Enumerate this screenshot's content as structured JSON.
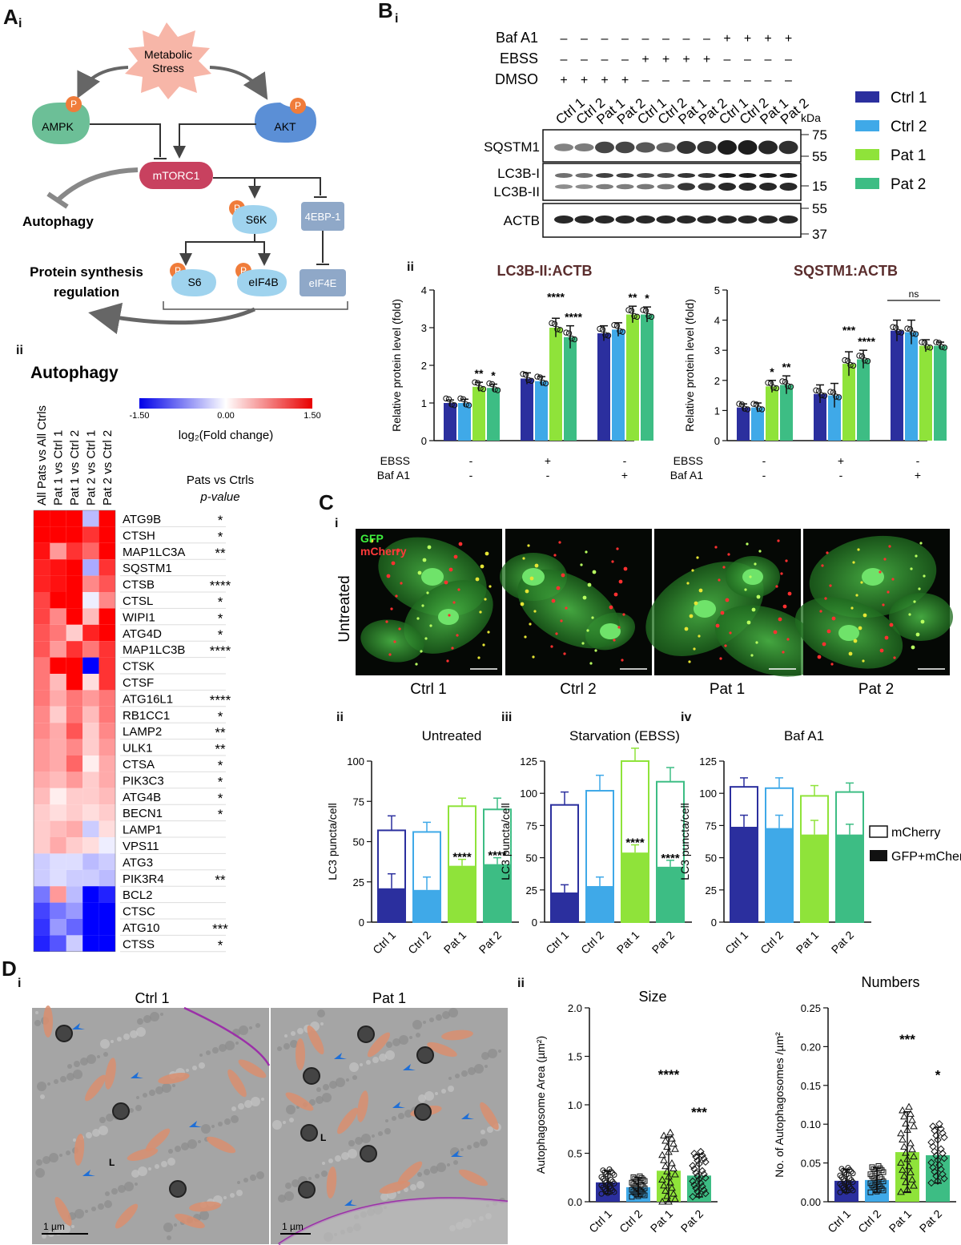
{
  "labels": {
    "A": "A",
    "Ai": "i",
    "Aii": "ii",
    "B": "B",
    "Bi": "i",
    "Bii": "ii",
    "C": "C",
    "Ci": "i",
    "Cii": "ii",
    "Ciii": "iii",
    "Civ": "iv",
    "D": "D",
    "Di": "i",
    "Dii": "ii"
  },
  "pathway": {
    "stress": "Metabolic\nStress",
    "ampk": "AMPK",
    "akt": "AKT",
    "mtorc1": "mTORC1",
    "s6k": "S6K",
    "ebp": "4EBP-1",
    "s6": "S6",
    "eif4b": "eIF4B",
    "eif4e": "eIF4E",
    "autophagy": "Autophagy",
    "protein": "Protein synthesis\nregulation",
    "p": "P",
    "colors": {
      "stress": "#f7b6a8",
      "ampk": "#6cbf97",
      "akt": "#5b8fd6",
      "mtorc1": "#c8415f",
      "light": "#9fd3ee",
      "grey": "#8fa8c8",
      "p": "#f07c3a"
    }
  },
  "heatmap": {
    "title": "Autophagy",
    "colorbar": {
      "min": "-1.50",
      "mid": "0.00",
      "max": "1.50",
      "label": "log₂(Fold change)"
    },
    "columns": [
      "All Pats vs All Ctrls",
      "Pat 1 vs Ctrl 1",
      "Pat 1 vs Ctrl 2",
      "Pat 2 vs Ctrl 1",
      "Pat 2 vs Ctrl 2"
    ],
    "pval_header": [
      "Pats vs Ctrls",
      "p-value"
    ],
    "rows": [
      {
        "gene": "ATG9B",
        "p": "*",
        "v": [
          1.5,
          1.5,
          1.5,
          -0.4,
          1.5
        ]
      },
      {
        "gene": "CTSH",
        "p": "*",
        "v": [
          1.5,
          1.5,
          1.5,
          1.2,
          1.5
        ]
      },
      {
        "gene": "MAP1LC3A",
        "p": "**",
        "v": [
          1.4,
          0.6,
          1.2,
          0.9,
          1.5
        ]
      },
      {
        "gene": "SQSTM1",
        "p": "",
        "v": [
          1.3,
          1.4,
          1.5,
          -0.5,
          1.2
        ]
      },
      {
        "gene": "CTSB",
        "p": "****",
        "v": [
          1.3,
          1.4,
          1.5,
          0.7,
          1.0
        ]
      },
      {
        "gene": "CTSL",
        "p": "*",
        "v": [
          1.1,
          1.5,
          1.5,
          -0.1,
          0.7
        ]
      },
      {
        "gene": "WIPI1",
        "p": "*",
        "v": [
          1.1,
          0.7,
          1.5,
          0.4,
          1.5
        ]
      },
      {
        "gene": "ATG4D",
        "p": "*",
        "v": [
          1.0,
          0.8,
          0.3,
          1.3,
          1.5
        ]
      },
      {
        "gene": "MAP1LC3B",
        "p": "****",
        "v": [
          1.0,
          0.6,
          1.2,
          0.8,
          1.2
        ]
      },
      {
        "gene": "CTSK",
        "p": "",
        "v": [
          0.8,
          1.5,
          1.5,
          -1.5,
          1.2
        ]
      },
      {
        "gene": "CTSF",
        "p": "",
        "v": [
          0.8,
          0.4,
          1.5,
          0.2,
          1.2
        ]
      },
      {
        "gene": "ATG16L1",
        "p": "****",
        "v": [
          0.8,
          0.5,
          0.8,
          0.6,
          0.8
        ]
      },
      {
        "gene": "RB1CC1",
        "p": "*",
        "v": [
          0.7,
          0.3,
          0.8,
          0.4,
          0.8
        ]
      },
      {
        "gene": "LAMP2",
        "p": "**",
        "v": [
          0.7,
          0.5,
          1.0,
          0.3,
          0.7
        ]
      },
      {
        "gene": "ULK1",
        "p": "**",
        "v": [
          0.6,
          0.5,
          0.7,
          0.3,
          0.6
        ]
      },
      {
        "gene": "CTSA",
        "p": "*",
        "v": [
          0.6,
          0.5,
          0.9,
          0.1,
          0.5
        ]
      },
      {
        "gene": "PIK3C3",
        "p": "*",
        "v": [
          0.5,
          0.4,
          0.6,
          0.3,
          0.5
        ]
      },
      {
        "gene": "ATG4B",
        "p": "*",
        "v": [
          0.4,
          0.1,
          0.3,
          0.3,
          0.4
        ]
      },
      {
        "gene": "BECN1",
        "p": "*",
        "v": [
          0.3,
          0.2,
          0.3,
          0.2,
          0.3
        ]
      },
      {
        "gene": "LAMP1",
        "p": "",
        "v": [
          0.3,
          0.4,
          0.5,
          -0.3,
          0.2
        ]
      },
      {
        "gene": "VPS11",
        "p": "",
        "v": [
          0.3,
          0.5,
          0.3,
          0.2,
          -0.1
        ]
      },
      {
        "gene": "ATG3",
        "p": "",
        "v": [
          -0.3,
          -0.2,
          -0.2,
          -0.4,
          -0.3
        ]
      },
      {
        "gene": "PIK3R4",
        "p": "**",
        "v": [
          -0.3,
          -0.2,
          -0.3,
          -0.3,
          -0.4
        ]
      },
      {
        "gene": "BCL2",
        "p": "",
        "v": [
          -0.8,
          0.6,
          -0.4,
          -1.5,
          -1.3
        ]
      },
      {
        "gene": "CTSC",
        "p": "",
        "v": [
          -1.1,
          -0.8,
          -0.6,
          -1.5,
          -1.5
        ]
      },
      {
        "gene": "ATG10",
        "p": "***",
        "v": [
          -1.2,
          -0.6,
          -0.9,
          -1.5,
          -1.5
        ]
      },
      {
        "gene": "CTSS",
        "p": "*",
        "v": [
          -1.3,
          -1.0,
          -0.3,
          -1.5,
          -1.5
        ]
      }
    ]
  },
  "blot": {
    "treatments": [
      {
        "name": "Baf A1",
        "signs": [
          "–",
          "–",
          "–",
          "–",
          "–",
          "–",
          "–",
          "–",
          "+",
          "+",
          "+",
          "+"
        ]
      },
      {
        "name": "EBSS",
        "signs": [
          "–",
          "–",
          "–",
          "–",
          "+",
          "+",
          "+",
          "+",
          "–",
          "–",
          "–",
          "–"
        ]
      },
      {
        "name": "DMSO",
        "signs": [
          "+",
          "+",
          "+",
          "+",
          "–",
          "–",
          "–",
          "–",
          "–",
          "–",
          "–",
          "–"
        ]
      }
    ],
    "lanes": [
      "Ctrl 1",
      "Ctrl 2",
      "Pat 1",
      "Pat 2",
      "Ctrl 1",
      "Ctrl 2",
      "Pat 1",
      "Pat 2",
      "Ctrl 1",
      "Ctrl 2",
      "Pat 1",
      "Pat 2"
    ],
    "kda": "kDa",
    "markers": [
      "75",
      "55",
      "15",
      "55",
      "37"
    ],
    "proteins": [
      "SQSTM1",
      "LC3B-I",
      "LC3B-II",
      "ACTB"
    ],
    "legend": [
      {
        "name": "Ctrl 1",
        "color": "#2b2f9e"
      },
      {
        "name": "Ctrl 2",
        "color": "#3fa9e8"
      },
      {
        "name": "Pat 1",
        "color": "#8fe33a"
      },
      {
        "name": "Pat 2",
        "color": "#3dbd84"
      }
    ]
  },
  "chart_data": [
    {
      "type": "bar",
      "title": "LC3B-II:ACTB",
      "ylabel": "Relative protein level (fold)",
      "ylim": [
        0,
        4
      ],
      "yticks": [
        "0",
        "1",
        "2",
        "3",
        "4"
      ],
      "conditions": [
        {
          "ebss": "-",
          "baf": "-"
        },
        {
          "ebss": "+",
          "baf": "-"
        },
        {
          "ebss": "-",
          "baf": "+"
        }
      ],
      "row_labels": [
        "EBSS",
        "Baf A1"
      ],
      "values": [
        [
          1.0,
          1.0,
          1.43,
          1.4
        ],
        [
          1.65,
          1.58,
          3.0,
          2.75
        ],
        [
          2.85,
          2.95,
          3.35,
          3.35
        ]
      ],
      "err": [
        [
          0.08,
          0.1,
          0.12,
          0.1
        ],
        [
          0.15,
          0.12,
          0.25,
          0.3
        ],
        [
          0.2,
          0.18,
          0.22,
          0.2
        ]
      ],
      "sig": [
        [
          "",
          "",
          "**",
          "*"
        ],
        [
          "",
          "",
          "****",
          "****"
        ],
        [
          "",
          "",
          "**",
          "*"
        ]
      ],
      "ns": ""
    },
    {
      "type": "bar",
      "title": "SQSTM1:ACTB",
      "ylabel": "Relative protein level (fold)",
      "ylim": [
        0,
        5
      ],
      "yticks": [
        "0",
        "1",
        "2",
        "3",
        "4",
        "5"
      ],
      "conditions": [
        {
          "ebss": "-",
          "baf": "-"
        },
        {
          "ebss": "+",
          "baf": "-"
        },
        {
          "ebss": "-",
          "baf": "+"
        }
      ],
      "row_labels": [
        "EBSS",
        "Baf A1"
      ],
      "values": [
        [
          1.1,
          1.1,
          1.8,
          1.85
        ],
        [
          1.55,
          1.5,
          2.55,
          2.7
        ],
        [
          3.65,
          3.6,
          3.15,
          3.15
        ]
      ],
      "err": [
        [
          0.12,
          0.15,
          0.2,
          0.3
        ],
        [
          0.3,
          0.4,
          0.4,
          0.3
        ],
        [
          0.35,
          0.4,
          0.2,
          0.12
        ]
      ],
      "sig": [
        [
          "",
          "",
          "*",
          "**"
        ],
        [
          "",
          "",
          "***",
          "****"
        ],
        [
          "",
          "",
          "",
          ""
        ]
      ],
      "ns": "ns"
    },
    {
      "type": "bar",
      "title": "Untreated",
      "ylabel": "LC3 puncta/cell",
      "ylim": [
        0,
        100
      ],
      "yticks": [
        "0",
        "25",
        "50",
        "75",
        "100"
      ],
      "categories": [
        "Ctrl 1",
        "Ctrl 2",
        "Pat 1",
        "Pat 2"
      ],
      "total": [
        57,
        56,
        72,
        70
      ],
      "total_err": [
        9,
        6,
        5,
        7
      ],
      "gfp": [
        21,
        20,
        35,
        36
      ],
      "gfp_err": [
        9,
        8,
        4,
        4
      ],
      "sig": [
        "",
        "",
        "****",
        "****"
      ]
    },
    {
      "type": "bar",
      "title": "Starvation (EBSS)",
      "ylabel": "LC3 puncta/cell",
      "ylim": [
        0,
        125
      ],
      "yticks": [
        "0",
        "25",
        "50",
        "75",
        "100",
        "125"
      ],
      "categories": [
        "Ctrl 1",
        "Ctrl 2",
        "Pat 1",
        "Pat 2"
      ],
      "total": [
        91,
        102,
        125,
        109
      ],
      "total_err": [
        10,
        12,
        10,
        11
      ],
      "gfp": [
        23,
        28,
        54,
        43
      ],
      "gfp_err": [
        6,
        7,
        6,
        5
      ],
      "sig": [
        "",
        "",
        "****",
        "****"
      ]
    },
    {
      "type": "bar",
      "title": "Baf A1",
      "ylabel": "LC3 puncta/cell",
      "ylim": [
        0,
        125
      ],
      "yticks": [
        "0",
        "25",
        "50",
        "75",
        "100",
        "125"
      ],
      "categories": [
        "Ctrl 1",
        "Ctrl 2",
        "Pat 1",
        "Pat 2"
      ],
      "total": [
        105,
        104,
        98,
        101
      ],
      "total_err": [
        7,
        8,
        8,
        7
      ],
      "gfp": [
        74,
        73,
        68,
        68
      ],
      "gfp_err": [
        9,
        10,
        11,
        8
      ],
      "sig": [
        "",
        "",
        "",
        ""
      ]
    },
    {
      "type": "scatter",
      "title": "Size",
      "ylabel": "Autophagosome Area (µm²)",
      "ylim": [
        0,
        2
      ],
      "yticks": [
        "0.0",
        "0.5",
        "1.0",
        "1.5",
        "2.0"
      ],
      "categories": [
        "Ctrl 1",
        "Ctrl 2",
        "Pat 1",
        "Pat 2"
      ],
      "means": [
        0.2,
        0.15,
        0.32,
        0.27
      ],
      "sd": [
        0.12,
        0.1,
        0.35,
        0.22
      ],
      "sig": [
        "",
        "",
        "****",
        "***"
      ]
    },
    {
      "type": "scatter",
      "title": "Numbers",
      "ylabel": "No. of Autophagosomes /µm²",
      "ylim": [
        0,
        0.25
      ],
      "yticks": [
        "0.00",
        "0.05",
        "0.10",
        "0.15",
        "0.20",
        "0.25"
      ],
      "categories": [
        "Ctrl 1",
        "Ctrl 2",
        "Pat 1",
        "Pat 2"
      ],
      "means": [
        0.027,
        0.028,
        0.064,
        0.06
      ],
      "sd": [
        0.015,
        0.016,
        0.052,
        0.036
      ],
      "sig": [
        "",
        "",
        "***",
        "*"
      ]
    }
  ],
  "legendC": {
    "open": "mCherry",
    "filled": "GFP+mCherry"
  },
  "micro": {
    "channels": {
      "gfp": "GFP",
      "mcherry": "mCherry"
    },
    "row": "Untreated",
    "panels": [
      "Ctrl 1",
      "Ctrl 2",
      "Pat 1",
      "Pat 2"
    ]
  },
  "em": {
    "panels": [
      "Ctrl 1",
      "Pat 1"
    ],
    "scale": "1 µm",
    "markL": "L"
  },
  "colors": {
    "ctrl1": "#2b2f9e",
    "ctrl2": "#3fa9e8",
    "pat1": "#8fe33a",
    "pat2": "#3dbd84"
  }
}
